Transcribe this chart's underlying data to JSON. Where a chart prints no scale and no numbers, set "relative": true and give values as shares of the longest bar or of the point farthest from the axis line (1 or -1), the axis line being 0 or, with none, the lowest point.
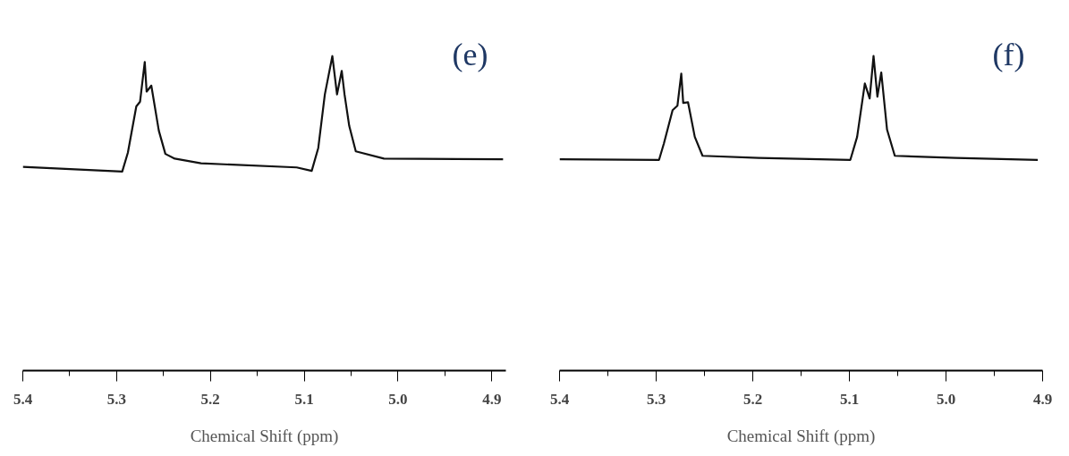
{
  "chart_data": [
    {
      "type": "line",
      "relative": true,
      "xlabel": "Chemical Shift (ppm)",
      "annotations": [
        "(e)"
      ],
      "color": "#111111",
      "grid": false,
      "tick_labels": "x",
      "xlim": [
        5.4,
        4.885
      ],
      "xticks": [
        5.4,
        5.3,
        5.2,
        5.1,
        {
          "value": 5.0,
          "label": "5.0"
        },
        4.9,
        {
          "value": 5.35,
          "label": null
        },
        {
          "value": 5.25,
          "label": null
        },
        {
          "value": 5.15,
          "label": null
        },
        {
          "value": 5.05,
          "label": null
        },
        {
          "value": 4.95,
          "label": null
        }
      ],
      "x": [
        5.4,
        5.294,
        5.288,
        5.279,
        5.275,
        5.27,
        5.268,
        5.263,
        5.255,
        5.248,
        5.238,
        5.21,
        5.108,
        5.092,
        5.085,
        5.078,
        5.07,
        5.065,
        5.06,
        5.057,
        5.052,
        5.045,
        5.015,
        4.888
      ],
      "values": [
        0.648,
        0.633,
        0.693,
        0.84,
        0.855,
        0.981,
        0.887,
        0.906,
        0.763,
        0.689,
        0.674,
        0.659,
        0.646,
        0.635,
        0.708,
        0.878,
        1.0,
        0.878,
        0.953,
        0.878,
        0.778,
        0.697,
        0.674,
        0.672
      ]
    },
    {
      "type": "line",
      "relative": true,
      "xlabel": "Chemical Shift (ppm)",
      "annotations": [
        "(f)"
      ],
      "color": "#111111",
      "grid": false,
      "tick_labels": "x",
      "xlim": [
        5.4,
        4.9
      ],
      "xticks": [
        5.4,
        5.3,
        5.2,
        5.1,
        {
          "value": 5.0,
          "label": "5.0"
        },
        4.9,
        {
          "value": 5.35,
          "label": null
        },
        {
          "value": 5.25,
          "label": null
        },
        {
          "value": 5.15,
          "label": null
        },
        {
          "value": 5.05,
          "label": null
        },
        {
          "value": 4.95,
          "label": null
        }
      ],
      "x": [
        5.4,
        5.297,
        5.292,
        5.283,
        5.278,
        5.274,
        5.272,
        5.267,
        5.26,
        5.252,
        5.194,
        5.099,
        5.092,
        5.084,
        5.079,
        5.075,
        5.071,
        5.067,
        5.061,
        5.053,
        4.99,
        4.905
      ],
      "values": [
        0.672,
        0.67,
        0.722,
        0.828,
        0.842,
        0.944,
        0.851,
        0.853,
        0.743,
        0.683,
        0.676,
        0.67,
        0.743,
        0.913,
        0.865,
        1.0,
        0.871,
        0.948,
        0.766,
        0.683,
        0.676,
        0.67
      ]
    }
  ]
}
